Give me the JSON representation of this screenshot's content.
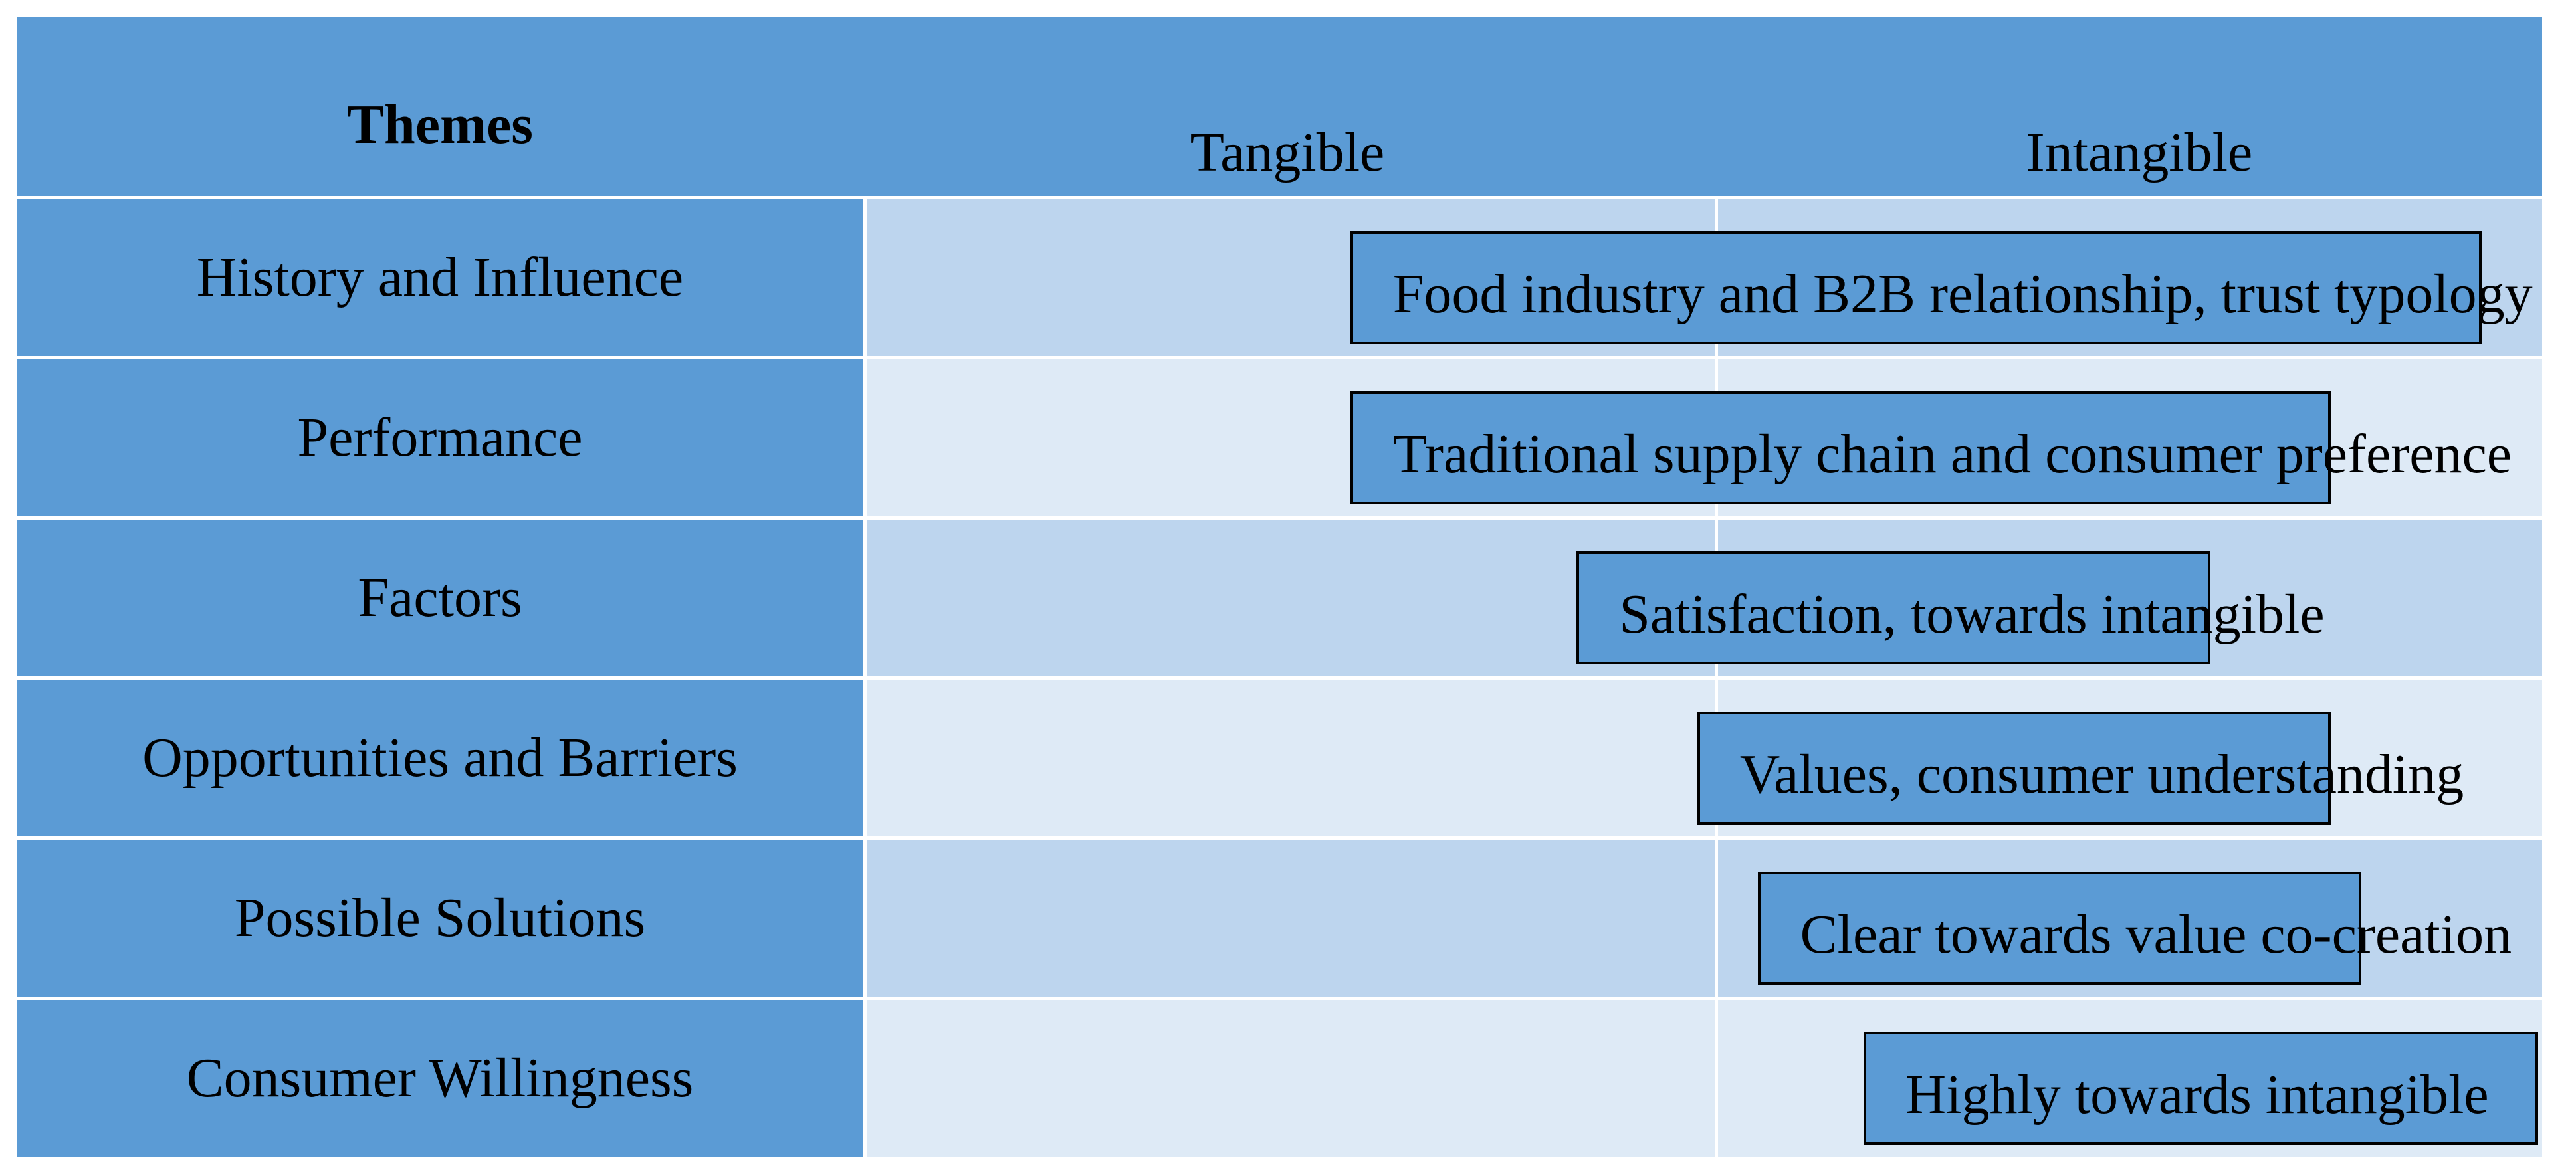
{
  "header": {
    "themes_label": "Themes",
    "left_pole": "Tangible",
    "right_pole": "Intangible"
  },
  "rows": [
    {
      "theme": "History and Influence",
      "bar_label": "Food industry and B2B relationship, trust typology",
      "span": [
        0.21,
        0.96
      ]
    },
    {
      "theme": "Performance",
      "bar_label": "Traditional supply chain and consumer preference",
      "span": [
        0.21,
        0.86
      ]
    },
    {
      "theme": "Factors",
      "bar_label": "Satisfaction, towards intangible",
      "span": [
        0.36,
        0.78
      ]
    },
    {
      "theme": "Opportunities and Barriers",
      "bar_label": "Values, consumer understanding",
      "span": [
        0.44,
        0.86
      ]
    },
    {
      "theme": "Possible Solutions",
      "bar_label": "Clear towards value co-creation",
      "span": [
        0.48,
        0.88
      ]
    },
    {
      "theme": "Consumer Willingness",
      "bar_label": "Highly towards intangible",
      "span": [
        0.55,
        1.0
      ]
    }
  ],
  "colors": {
    "theme_fill": "#5b9bd5",
    "bar_fill": "#5b9bd5",
    "bar_border": "#000000",
    "track_dark": "#bdd5ee",
    "track_light": "#deeaf6",
    "divider": "#ffffff"
  }
}
